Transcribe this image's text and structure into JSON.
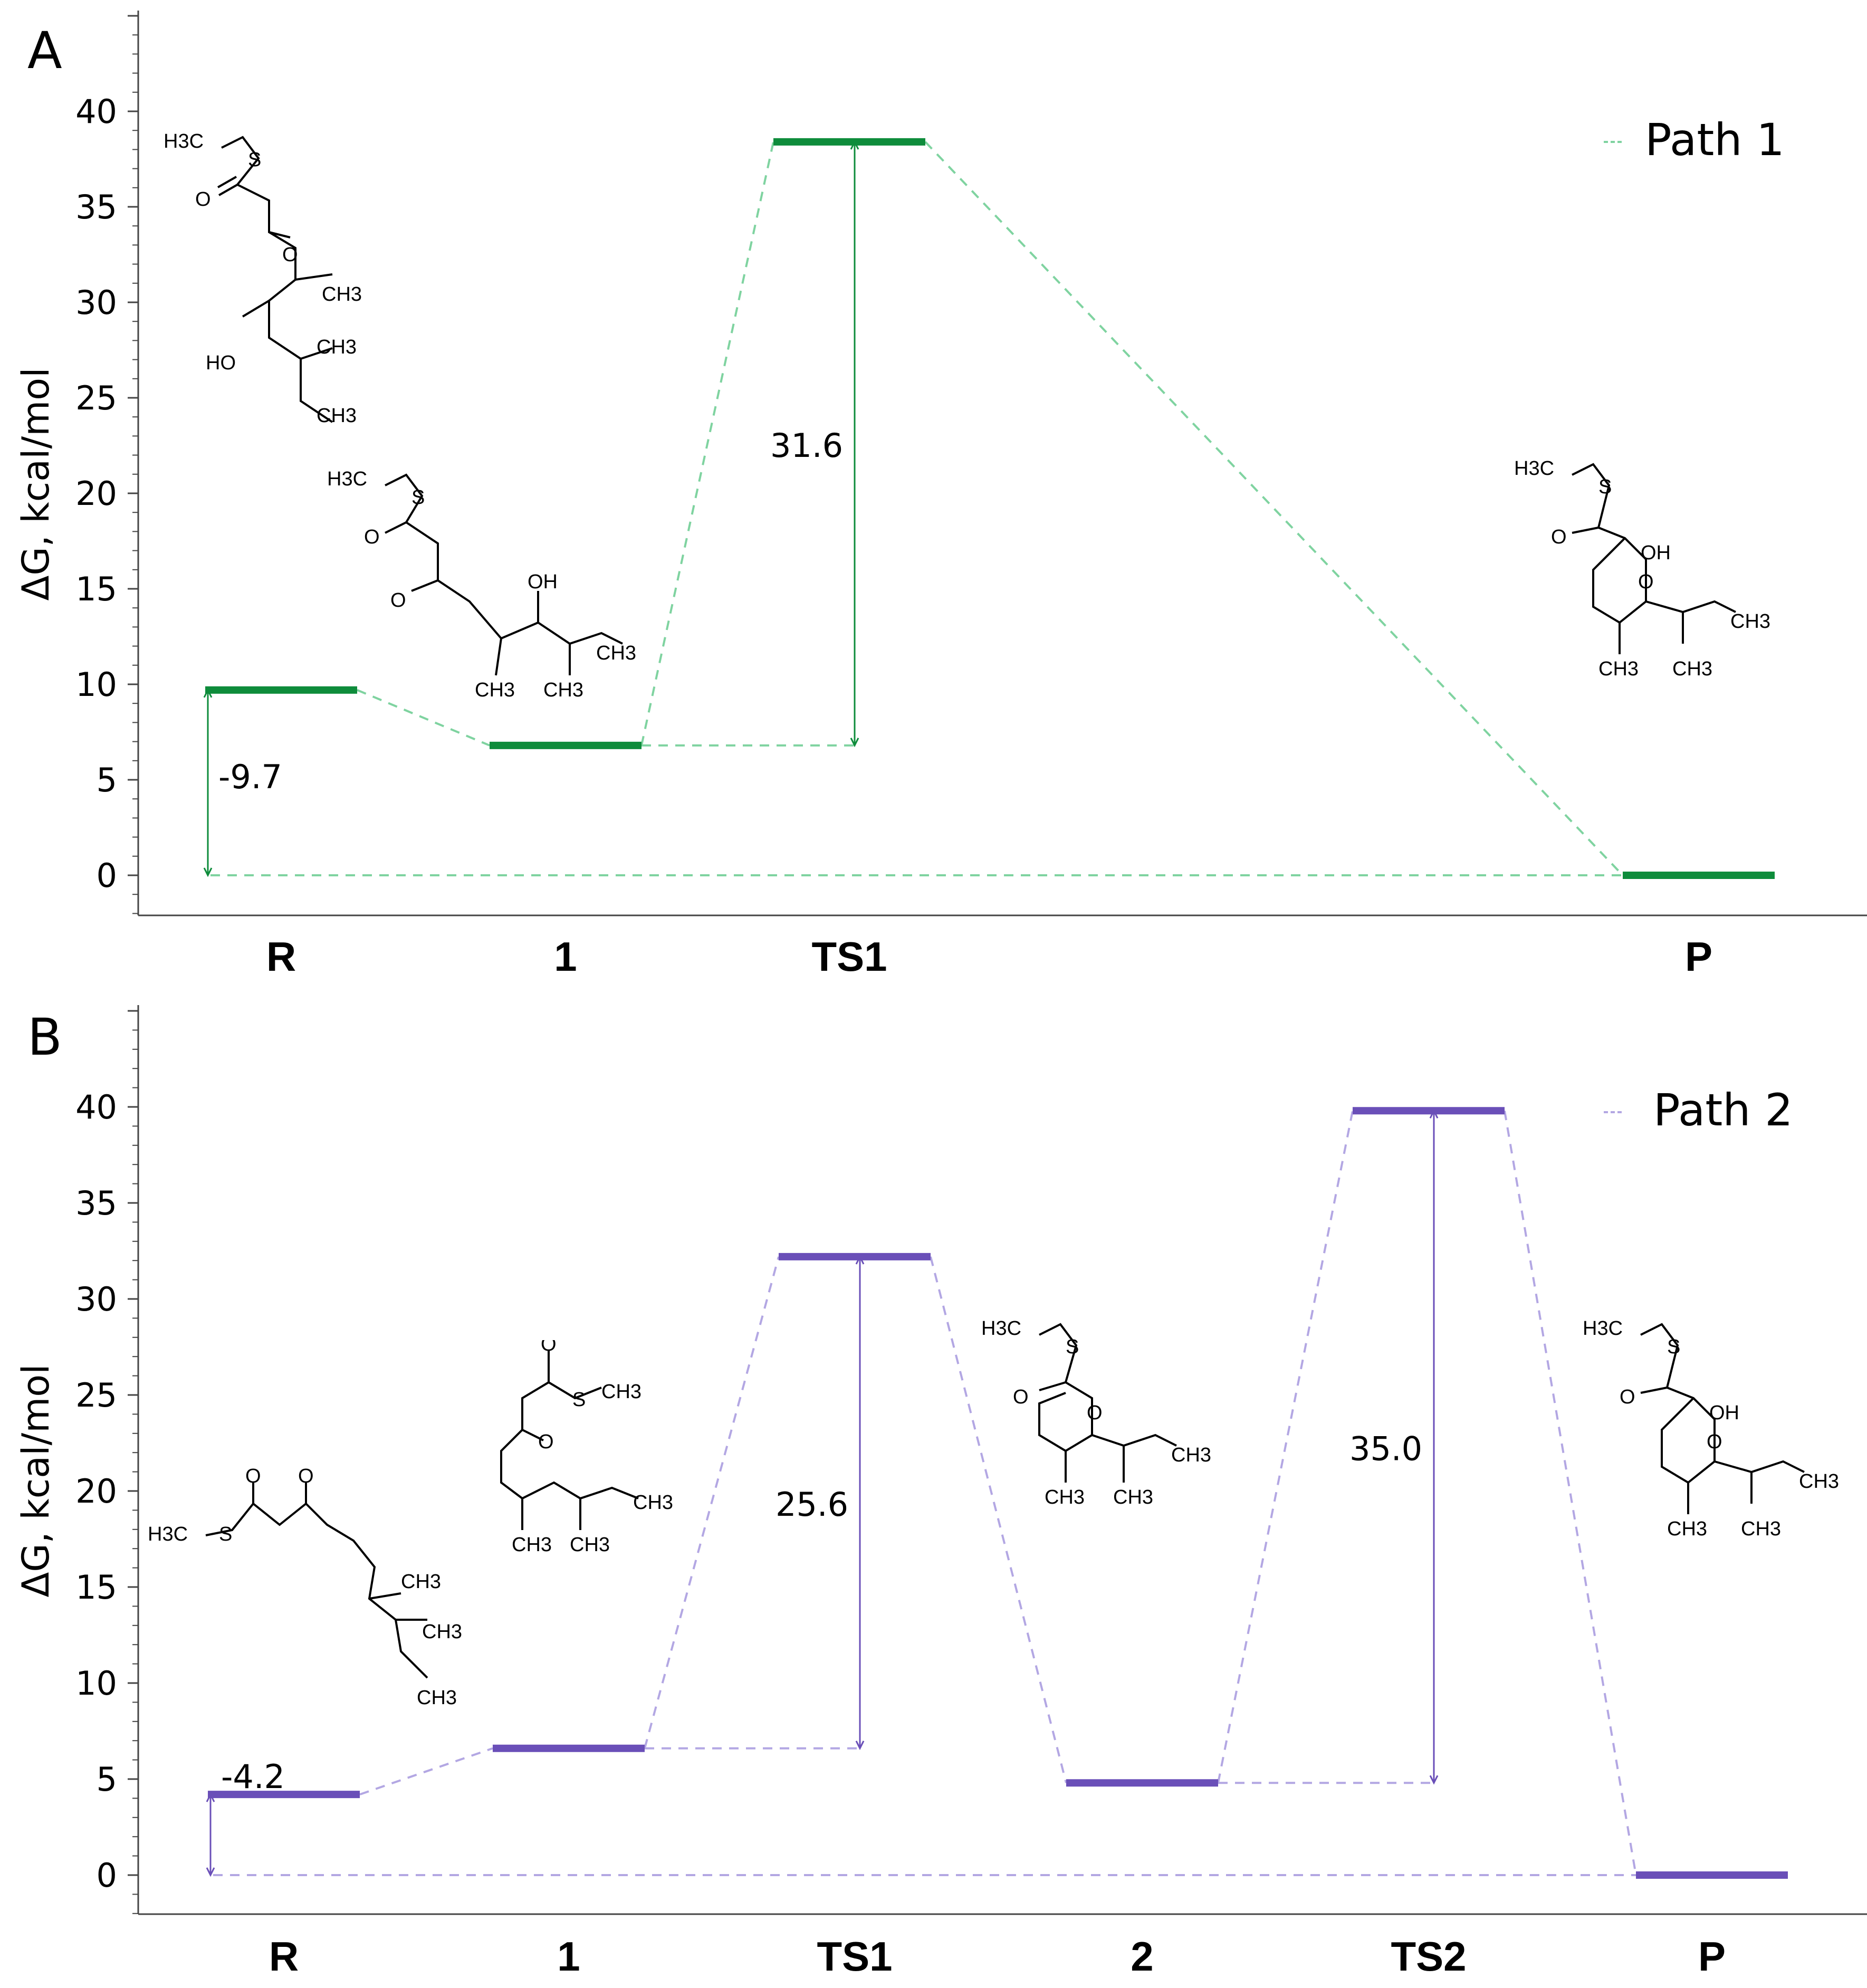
{
  "chart_data": [
    {
      "type": "energy_profile",
      "panel": "A",
      "ylabel": "ΔG, kcal/mol",
      "ylim": [
        -2,
        45
      ],
      "yticks": [
        0,
        5,
        10,
        15,
        20,
        25,
        30,
        35,
        40
      ],
      "legend": "Path 1",
      "color": "#0e8c3b",
      "dash_color": "#7fd3a0",
      "states": [
        {
          "label": "R",
          "value": 9.7
        },
        {
          "label": "1",
          "value": 6.8
        },
        {
          "label": "TS1",
          "value": 38.4
        },
        {
          "label": "P",
          "value": 0.0
        }
      ],
      "annotations": [
        {
          "text": "-9.7",
          "from_state": "R",
          "from": 9.7,
          "to": 0.0
        },
        {
          "text": "31.6",
          "from_state": "1",
          "at_state": "TS1",
          "from": 6.8,
          "to": 38.4
        }
      ]
    },
    {
      "type": "energy_profile",
      "panel": "B",
      "ylabel": "ΔG, kcal/mol",
      "ylim": [
        -2,
        45
      ],
      "yticks": [
        0,
        5,
        10,
        15,
        20,
        25,
        30,
        35,
        40
      ],
      "legend": "Path 2",
      "color": "#6a4fb8",
      "dash_color": "#b3a7e3",
      "states": [
        {
          "label": "R",
          "value": 4.2
        },
        {
          "label": "1",
          "value": 6.6
        },
        {
          "label": "TS1",
          "value": 32.2
        },
        {
          "label": "2",
          "value": 4.8
        },
        {
          "label": "TS2",
          "value": 39.8
        },
        {
          "label": "P",
          "value": 0.0
        }
      ],
      "annotations": [
        {
          "text": "-4.2",
          "from_state": "R",
          "from": 4.2,
          "to": 0.0
        },
        {
          "text": "25.6",
          "from_state": "1",
          "at_state": "TS1",
          "from": 6.6,
          "to": 32.2
        },
        {
          "text": "35.0",
          "from_state": "2",
          "at_state": "TS2",
          "from": 4.8,
          "to": 39.8
        }
      ]
    }
  ],
  "panel_labels": [
    "A",
    "B"
  ],
  "structure_labels": {
    "methyl": "CH3",
    "methyl_left": "H3C",
    "sulfur": "S",
    "oxygen": "O",
    "hydroxyl": "OH",
    "hydroxyl_left": "HO"
  }
}
